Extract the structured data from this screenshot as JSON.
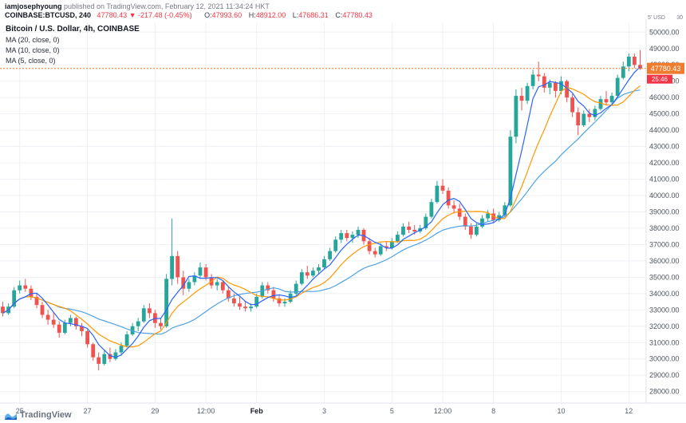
{
  "attribution": {
    "author": "iamjosephyoung",
    "rest": " published on TradingView.com, February 12, 2021 11:34:24 HKT"
  },
  "symbol_line": {
    "symbol": "COINBASE:BTCUSD, 240",
    "last": "47780.43",
    "direction_icon": "▼",
    "change": "-217.48 (-0.45%)",
    "o_label": "O:",
    "o": "47993.60",
    "h_label": "H:",
    "h": "48912.00",
    "l_label": "L:",
    "l": "47686.31",
    "c_label": "C:",
    "c": "47780.43"
  },
  "legend": {
    "title": "Bitcoin / U.S. Dollar, 4h, COINBASE",
    "indicators": [
      "MA (20, close, 0)",
      "MA (10, close, 0)",
      "MA (5, close, 0)"
    ]
  },
  "price_scale": {
    "badge_value": "47780.43",
    "badge_color": "#ef7d2d",
    "countdown": "25:46",
    "countdown_color": "#f23645",
    "corner_note": "5' USD",
    "corner_note_2": "30"
  },
  "footer": {
    "brand": "TradingView"
  },
  "chart_data": {
    "type": "candlestick",
    "title": "Bitcoin / U.S. Dollar, 4h, COINBASE",
    "symbol": "COINBASE:BTCUSD",
    "interval": "4h",
    "ylim": [
      28000,
      50000
    ],
    "y_tick_step": 1000,
    "y_tick_format": "0.00",
    "last_price": 47780.43,
    "grid": true,
    "ma_periods": [
      20,
      10,
      5
    ],
    "colors": {
      "up": "#26a69a",
      "down": "#ef5350",
      "ma20": "#4fa3e3",
      "ma10": "#ff9800",
      "ma5": "#2962ff",
      "grid": "#eef1f6",
      "axis_line": "#e0e3eb",
      "axis_text": "#4c525e"
    },
    "time_labels": [
      {
        "label": "25",
        "index": 3,
        "major": false
      },
      {
        "label": "27",
        "index": 15,
        "major": false
      },
      {
        "label": "29",
        "index": 27,
        "major": false
      },
      {
        "label": "12:00",
        "index": 36,
        "major": false
      },
      {
        "label": "Feb",
        "index": 45,
        "major": true
      },
      {
        "label": "3",
        "index": 57,
        "major": false
      },
      {
        "label": "5",
        "index": 69,
        "major": false
      },
      {
        "label": "12:00",
        "index": 78,
        "major": false
      },
      {
        "label": "8",
        "index": 87,
        "major": false
      },
      {
        "label": "10",
        "index": 99,
        "major": false
      },
      {
        "label": "12",
        "index": 111,
        "major": false
      }
    ],
    "candles": [
      [
        33200,
        33500,
        32600,
        32800
      ],
      [
        32800,
        33400,
        32700,
        33200
      ],
      [
        33200,
        34400,
        33100,
        34200
      ],
      [
        34200,
        34800,
        34000,
        34500
      ],
      [
        34500,
        34900,
        34100,
        34300
      ],
      [
        34300,
        34500,
        33600,
        33800
      ],
      [
        33800,
        34000,
        33100,
        33300
      ],
      [
        33300,
        33500,
        32500,
        32700
      ],
      [
        32700,
        33000,
        32100,
        32400
      ],
      [
        32400,
        32800,
        31900,
        32100
      ],
      [
        32100,
        32300,
        31300,
        31600
      ],
      [
        31600,
        32400,
        31500,
        32200
      ],
      [
        32200,
        32700,
        32000,
        32500
      ],
      [
        32500,
        32600,
        31800,
        32000
      ],
      [
        32000,
        32200,
        31400,
        31700
      ],
      [
        31700,
        31800,
        30700,
        30900
      ],
      [
        30900,
        31000,
        29900,
        30100
      ],
      [
        30100,
        30400,
        29300,
        29700
      ],
      [
        29700,
        30500,
        29600,
        30300
      ],
      [
        30300,
        30700,
        29800,
        30000
      ],
      [
        30000,
        30600,
        29900,
        30400
      ],
      [
        30400,
        31000,
        30200,
        30800
      ],
      [
        30800,
        31700,
        30700,
        31500
      ],
      [
        31500,
        32200,
        31400,
        32000
      ],
      [
        32000,
        32500,
        31700,
        32300
      ],
      [
        32300,
        33300,
        32200,
        33100
      ],
      [
        33100,
        33400,
        32500,
        32800
      ],
      [
        32800,
        33000,
        31900,
        32200
      ],
      [
        32200,
        32500,
        31800,
        32000
      ],
      [
        32000,
        35200,
        31900,
        34900
      ],
      [
        34900,
        38600,
        34500,
        36300
      ],
      [
        36300,
        36600,
        34600,
        35000
      ],
      [
        35000,
        35400,
        33900,
        34300
      ],
      [
        34300,
        34900,
        34100,
        34700
      ],
      [
        34700,
        35300,
        34500,
        35100
      ],
      [
        35100,
        35900,
        34900,
        35600
      ],
      [
        35600,
        35800,
        34800,
        35000
      ],
      [
        35000,
        35200,
        34300,
        34500
      ],
      [
        34500,
        34900,
        34200,
        34700
      ],
      [
        34700,
        34800,
        34000,
        34200
      ],
      [
        34200,
        34400,
        33500,
        33700
      ],
      [
        33700,
        34000,
        33200,
        33400
      ],
      [
        33400,
        33800,
        33000,
        33200
      ],
      [
        33200,
        33500,
        32900,
        33100
      ],
      [
        33100,
        33400,
        32900,
        33200
      ],
      [
        33200,
        34000,
        33100,
        33800
      ],
      [
        33800,
        34700,
        33700,
        34500
      ],
      [
        34500,
        34700,
        34000,
        34200
      ],
      [
        34200,
        34400,
        33500,
        33700
      ],
      [
        33700,
        33900,
        33200,
        33400
      ],
      [
        33400,
        33700,
        33200,
        33500
      ],
      [
        33500,
        34200,
        33400,
        34000
      ],
      [
        34000,
        34800,
        33900,
        34600
      ],
      [
        34600,
        35500,
        34500,
        35300
      ],
      [
        35300,
        35700,
        34900,
        35100
      ],
      [
        35100,
        35600,
        35000,
        35400
      ],
      [
        35400,
        35800,
        35200,
        35600
      ],
      [
        35600,
        36300,
        35500,
        36100
      ],
      [
        36100,
        36800,
        36000,
        36600
      ],
      [
        36600,
        37500,
        36500,
        37300
      ],
      [
        37300,
        37900,
        37100,
        37700
      ],
      [
        37700,
        37900,
        37200,
        37400
      ],
      [
        37400,
        37800,
        37100,
        37600
      ],
      [
        37600,
        38100,
        37400,
        37900
      ],
      [
        37900,
        38000,
        37000,
        37200
      ],
      [
        37200,
        37400,
        36400,
        36600
      ],
      [
        36600,
        36800,
        36200,
        36400
      ],
      [
        36400,
        37100,
        36300,
        36900
      ],
      [
        36900,
        37200,
        36600,
        36800
      ],
      [
        36800,
        37400,
        36700,
        37200
      ],
      [
        37200,
        37800,
        37100,
        37600
      ],
      [
        37600,
        38300,
        37500,
        38100
      ],
      [
        38100,
        38400,
        37700,
        37900
      ],
      [
        37900,
        38200,
        37600,
        37800
      ],
      [
        37800,
        38200,
        37700,
        38000
      ],
      [
        38000,
        38900,
        37900,
        38700
      ],
      [
        38700,
        39800,
        38600,
        39600
      ],
      [
        39600,
        40900,
        39500,
        40600
      ],
      [
        40600,
        41000,
        40100,
        40300
      ],
      [
        40300,
        40500,
        39200,
        39400
      ],
      [
        39400,
        39700,
        38900,
        39200
      ],
      [
        39200,
        39500,
        38500,
        38700
      ],
      [
        38700,
        38900,
        37900,
        38100
      ],
      [
        38100,
        38300,
        37350,
        37600
      ],
      [
        37600,
        38300,
        37500,
        38100
      ],
      [
        38100,
        38800,
        38000,
        38600
      ],
      [
        38600,
        39100,
        38400,
        38900
      ],
      [
        38900,
        39200,
        38300,
        38500
      ],
      [
        38500,
        39000,
        38400,
        38800
      ],
      [
        38800,
        39600,
        38700,
        39400
      ],
      [
        39400,
        44000,
        39300,
        43600
      ],
      [
        43600,
        46500,
        43200,
        46100
      ],
      [
        46100,
        46600,
        45200,
        45800
      ],
      [
        45800,
        46900,
        45600,
        46700
      ],
      [
        46700,
        47700,
        46500,
        47400
      ],
      [
        47400,
        48200,
        47000,
        47300
      ],
      [
        47300,
        47500,
        46300,
        46600
      ],
      [
        46600,
        47100,
        46200,
        46900
      ],
      [
        46900,
        47000,
        46000,
        46400
      ],
      [
        46400,
        47300,
        46200,
        47000
      ],
      [
        47000,
        47100,
        45700,
        46000
      ],
      [
        46000,
        46200,
        44800,
        45100
      ],
      [
        45100,
        45400,
        43700,
        44300
      ],
      [
        44300,
        45200,
        44200,
        45000
      ],
      [
        45000,
        45300,
        44500,
        44800
      ],
      [
        44800,
        45500,
        44600,
        45300
      ],
      [
        45300,
        46100,
        45200,
        45900
      ],
      [
        45900,
        46400,
        45500,
        45700
      ],
      [
        45700,
        46300,
        45600,
        46100
      ],
      [
        46100,
        47400,
        46000,
        47200
      ],
      [
        47200,
        48200,
        47100,
        47900
      ],
      [
        47900,
        48700,
        47600,
        48500
      ],
      [
        48500,
        48700,
        47800,
        47995
      ],
      [
        47993.6,
        48912,
        47686.31,
        47780.43
      ]
    ]
  }
}
